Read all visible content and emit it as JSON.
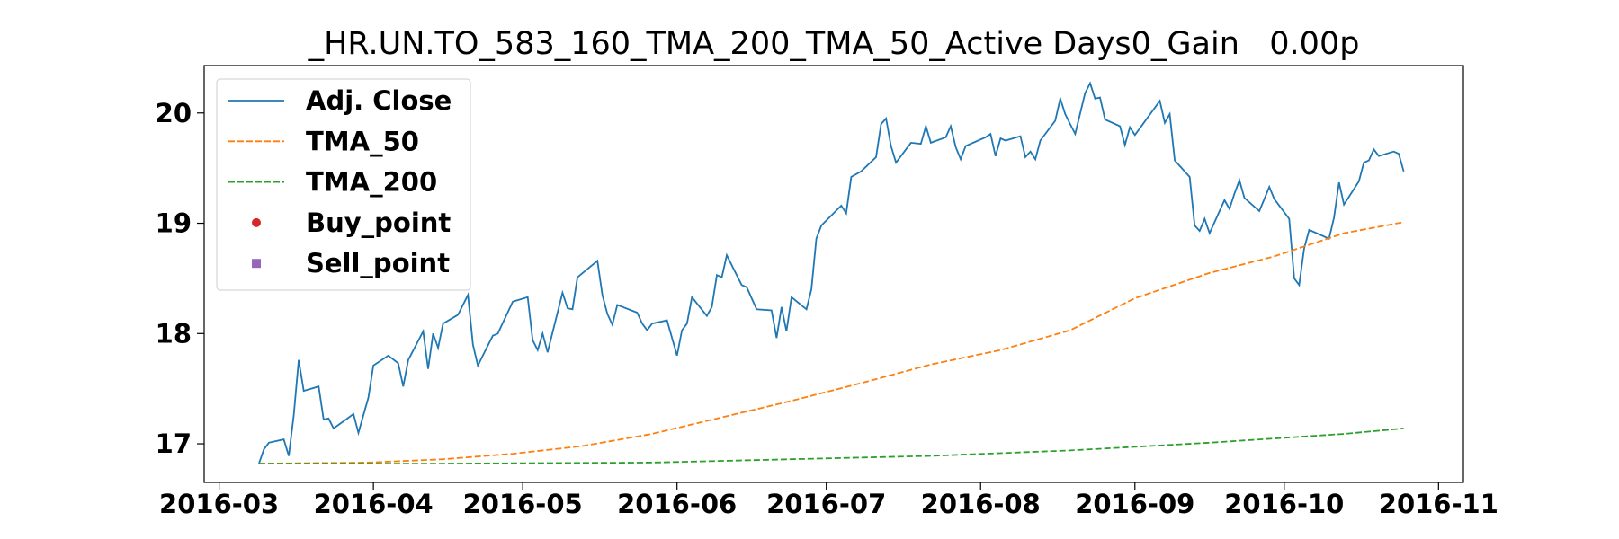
{
  "chart_data": {
    "type": "line",
    "title": "_HR.UN.TO_583_160_TMA_200_TMA_50_Active Days0_Gain   0.00p",
    "xlim": [
      "2016-02-27",
      "2016-11-06"
    ],
    "xticks": [
      "2016-03",
      "2016-04",
      "2016-05",
      "2016-06",
      "2016-07",
      "2016-08",
      "2016-09",
      "2016-10",
      "2016-11"
    ],
    "ylim": [
      16.65,
      20.43
    ],
    "yticks": [
      17,
      18,
      19,
      20
    ],
    "grid": false,
    "legend": "upper left",
    "series": [
      {
        "name": "Adj. Close",
        "color": "#1f77b4",
        "linestyle": "solid",
        "x": [
          "2016-03-09",
          "2016-03-10",
          "2016-03-11",
          "2016-03-14",
          "2016-03-15",
          "2016-03-16",
          "2016-03-17",
          "2016-03-18",
          "2016-03-21",
          "2016-03-22",
          "2016-03-23",
          "2016-03-24",
          "2016-03-28",
          "2016-03-29",
          "2016-03-31",
          "2016-04-01",
          "2016-04-04",
          "2016-04-06",
          "2016-04-07",
          "2016-04-08",
          "2016-04-11",
          "2016-04-12",
          "2016-04-13",
          "2016-04-14",
          "2016-04-15",
          "2016-04-18",
          "2016-04-20",
          "2016-04-21",
          "2016-04-22",
          "2016-04-25",
          "2016-04-26",
          "2016-04-29",
          "2016-05-02",
          "2016-05-03",
          "2016-05-04",
          "2016-05-05",
          "2016-05-06",
          "2016-05-09",
          "2016-05-10",
          "2016-05-11",
          "2016-05-12",
          "2016-05-16",
          "2016-05-17",
          "2016-05-18",
          "2016-05-19",
          "2016-05-20",
          "2016-05-24",
          "2016-05-25",
          "2016-05-26",
          "2016-05-27",
          "2016-05-30",
          "2016-06-01",
          "2016-06-02",
          "2016-06-03",
          "2016-06-04",
          "2016-06-07",
          "2016-06-08",
          "2016-06-09",
          "2016-06-10",
          "2016-06-11",
          "2016-06-14",
          "2016-06-15",
          "2016-06-17",
          "2016-06-20",
          "2016-06-21",
          "2016-06-22",
          "2016-06-23",
          "2016-06-24",
          "2016-06-27",
          "2016-06-28",
          "2016-06-29",
          "2016-06-30",
          "2016-07-04",
          "2016-07-05",
          "2016-07-06",
          "2016-07-08",
          "2016-07-11",
          "2016-07-12",
          "2016-07-13",
          "2016-07-14",
          "2016-07-15",
          "2016-07-18",
          "2016-07-20",
          "2016-07-21",
          "2016-07-22",
          "2016-07-25",
          "2016-07-26",
          "2016-07-27",
          "2016-07-28",
          "2016-07-29",
          "2016-08-02",
          "2016-08-03",
          "2016-08-04",
          "2016-08-05",
          "2016-08-06",
          "2016-08-09",
          "2016-08-10",
          "2016-08-11",
          "2016-08-12",
          "2016-08-13",
          "2016-08-16",
          "2016-08-17",
          "2016-08-18",
          "2016-08-19",
          "2016-08-20",
          "2016-08-22",
          "2016-08-23",
          "2016-08-24",
          "2016-08-25",
          "2016-08-26",
          "2016-08-29",
          "2016-08-30",
          "2016-08-31",
          "2016-09-01",
          "2016-09-06",
          "2016-09-07",
          "2016-09-08",
          "2016-09-09",
          "2016-09-12",
          "2016-09-13",
          "2016-09-14",
          "2016-09-15",
          "2016-09-16",
          "2016-09-19",
          "2016-09-20",
          "2016-09-21",
          "2016-09-22",
          "2016-09-23",
          "2016-09-26",
          "2016-09-27",
          "2016-09-28",
          "2016-09-29",
          "2016-10-02",
          "2016-10-03",
          "2016-10-04",
          "2016-10-05",
          "2016-10-06",
          "2016-10-10",
          "2016-10-11",
          "2016-10-12",
          "2016-10-13",
          "2016-10-16",
          "2016-10-17",
          "2016-10-18",
          "2016-10-19",
          "2016-10-20",
          "2016-10-23",
          "2016-10-24",
          "2016-10-25"
        ],
        "values": [
          16.82,
          16.95,
          17.01,
          17.04,
          16.89,
          17.26,
          17.76,
          17.48,
          17.52,
          17.22,
          17.23,
          17.14,
          17.27,
          17.1,
          17.42,
          17.71,
          17.8,
          17.73,
          17.52,
          17.76,
          18.02,
          17.68,
          18.0,
          17.87,
          18.09,
          18.17,
          18.35,
          17.9,
          17.71,
          17.98,
          18.0,
          18.29,
          18.33,
          17.94,
          17.85,
          18.0,
          17.83,
          18.37,
          18.23,
          18.22,
          18.51,
          18.66,
          18.35,
          18.18,
          18.08,
          18.26,
          18.19,
          18.09,
          18.03,
          18.09,
          18.12,
          17.8,
          18.03,
          18.09,
          18.33,
          18.16,
          18.24,
          18.53,
          18.51,
          18.71,
          18.44,
          18.42,
          18.22,
          18.21,
          17.96,
          18.24,
          18.02,
          18.33,
          18.22,
          18.4,
          18.86,
          18.98,
          19.16,
          19.09,
          19.42,
          19.47,
          19.6,
          19.9,
          19.95,
          19.7,
          19.55,
          19.73,
          19.72,
          19.88,
          19.73,
          19.78,
          19.88,
          19.69,
          19.58,
          19.7,
          19.78,
          19.81,
          19.61,
          19.77,
          19.75,
          19.79,
          19.6,
          19.65,
          19.58,
          19.75,
          19.93,
          20.13,
          19.99,
          19.9,
          19.81,
          20.18,
          20.27,
          20.13,
          20.14,
          19.94,
          19.88,
          19.71,
          19.87,
          19.8,
          20.11,
          19.91,
          19.99,
          19.57,
          19.42,
          18.98,
          18.93,
          19.04,
          18.91,
          19.21,
          19.13,
          19.27,
          19.39,
          19.23,
          19.11,
          19.22,
          19.33,
          19.22,
          19.04,
          18.5,
          18.44,
          18.77,
          18.94,
          18.86,
          19.05,
          19.37,
          19.17,
          19.38,
          19.55,
          19.57,
          19.67,
          19.61,
          19.65,
          19.63,
          19.47
        ]
      },
      {
        "name": "TMA_50",
        "color": "#ff7f0e",
        "linestyle": "dashed",
        "x": [
          "2016-03-09",
          "2016-03-31",
          "2016-04-15",
          "2016-04-29",
          "2016-05-13",
          "2016-05-27",
          "2016-06-10",
          "2016-06-24",
          "2016-07-08",
          "2016-07-22",
          "2016-08-05",
          "2016-08-19",
          "2016-09-01",
          "2016-09-16",
          "2016-09-29",
          "2016-10-13",
          "2016-10-25"
        ],
        "values": [
          16.82,
          16.83,
          16.86,
          16.91,
          16.98,
          17.09,
          17.24,
          17.39,
          17.55,
          17.72,
          17.85,
          18.03,
          18.32,
          18.55,
          18.7,
          18.91,
          19.01
        ]
      },
      {
        "name": "TMA_200",
        "color": "#2ca02c",
        "linestyle": "dashed",
        "x": [
          "2016-03-09",
          "2016-04-15",
          "2016-05-27",
          "2016-06-24",
          "2016-07-22",
          "2016-08-19",
          "2016-09-16",
          "2016-10-13",
          "2016-10-25"
        ],
        "values": [
          16.82,
          16.82,
          16.83,
          16.86,
          16.89,
          16.94,
          17.01,
          17.09,
          17.14
        ]
      },
      {
        "name": "Buy_point",
        "color": "#d62728",
        "marker": "circle",
        "x": [],
        "values": []
      },
      {
        "name": "Sell_point",
        "color": "#9467bd",
        "marker": "square",
        "x": [],
        "values": []
      }
    ]
  }
}
